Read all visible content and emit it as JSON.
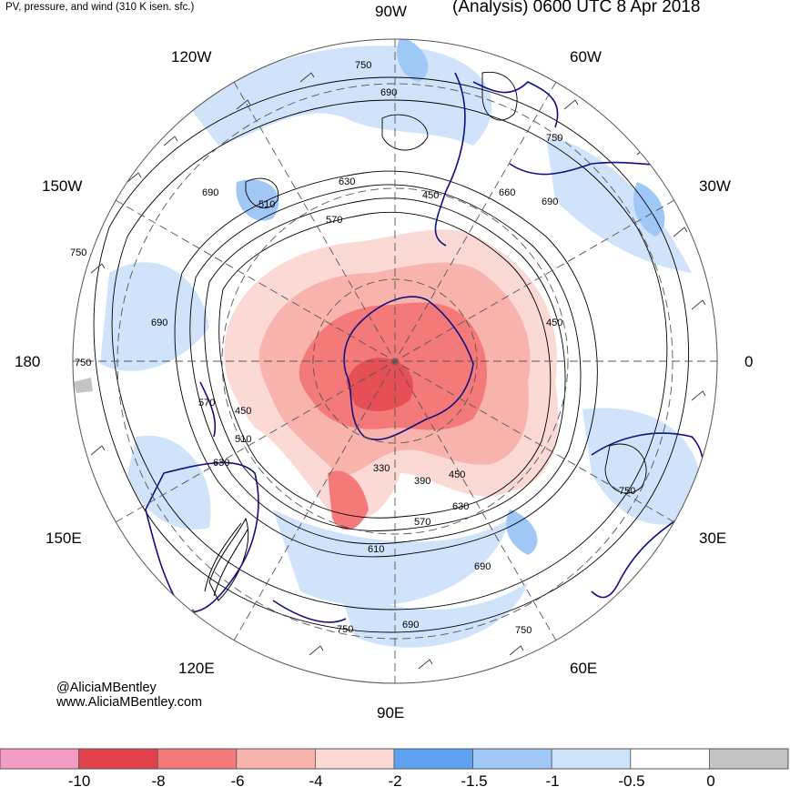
{
  "header": {
    "left_title": "PV, pressure, and wind (310 K isen. sfc.)",
    "right_title": "(Analysis) 0600 UTC 8 Apr 2018"
  },
  "credits": {
    "handle": "@AliciaMBentley",
    "website": "www.AliciaMBentley.com"
  },
  "longitude_labels": [
    "90W",
    "60W",
    "30W",
    "0",
    "30E",
    "60E",
    "90E",
    "120E",
    "150E",
    "180",
    "150W",
    "120W"
  ],
  "contour_labels": [
    "750",
    "690",
    "630",
    "570",
    "510",
    "450",
    "390",
    "330",
    "610",
    "660"
  ],
  "colorbar": {
    "ticks": [
      "-10",
      "-8",
      "-6",
      "-4",
      "-2",
      "-1.5",
      "-1",
      "-0.5",
      "0"
    ],
    "colors": [
      "#f39bc1",
      "#e0414a",
      "#f47a7a",
      "#f9b3ad",
      "#fbd9d5",
      "#5fa1f1",
      "#9fc8f7",
      "#cde2fb",
      "#ffffff",
      "#c4c4c4"
    ]
  },
  "colors": {
    "pv_negative": "#f47a7a",
    "pv_weak_negative": "#fbd9d5",
    "pv_light_blue": "#cde2fb",
    "coastline": "#101080",
    "contour": "#000000",
    "graticule": "#555555"
  }
}
